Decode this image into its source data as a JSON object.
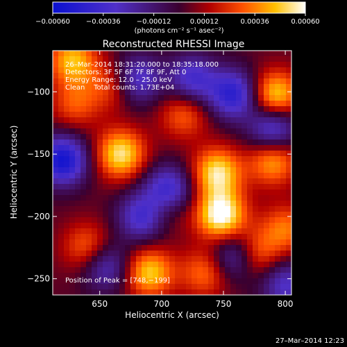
{
  "chart_data": {
    "type": "heatmap",
    "title": "Reconstructed RHESSI Image",
    "xlabel": "Heliocentric X (arcsec)",
    "ylabel": "Heliocentric Y (arcsec)",
    "xlim": [
      612,
      805
    ],
    "ylim": [
      -263,
      -67
    ],
    "x_ticks": [
      650,
      700,
      750,
      800
    ],
    "y_ticks": [
      -100,
      -150,
      -200,
      -250
    ],
    "x_tick_labels": [
      "650",
      "700",
      "750",
      "800"
    ],
    "y_tick_labels": [
      "−100",
      "−150",
      "−200",
      "−250"
    ],
    "colorbar": {
      "range": [
        -0.0006,
        0.0006
      ],
      "ticks": [
        -0.0006,
        -0.00036,
        -0.00012,
        0.00012,
        0.00036,
        0.0006
      ],
      "tick_labels": [
        "−0.00060",
        "−0.00036",
        "−0.00012",
        "0.00012",
        "0.00036",
        "0.00060"
      ],
      "unit_label": "(photons cm⁻² s⁻¹ asec⁻²)"
    },
    "annotations": [
      "26–Mar–2014 18:31:20.000 to 18:35:18.000",
      "Detectors: 3F 5F 6F 7F 8F 9F, Att 0",
      "Energy Range: 12.0 – 25.0 keV",
      "Clean    Total counts: 1.73E+04"
    ],
    "peak_label": "Position of Peak = [748,−199]",
    "peak": [
      748,
      -199
    ],
    "blobs": [
      {
        "x": 667,
        "y": -150,
        "v": 0.0005
      },
      {
        "x": 748,
        "y": -199,
        "v": 0.0006
      },
      {
        "x": 745,
        "y": -165,
        "v": 0.0005
      },
      {
        "x": 792,
        "y": -103,
        "v": 0.00048
      },
      {
        "x": 628,
        "y": -75,
        "v": 0.00042
      },
      {
        "x": 718,
        "y": -118,
        "v": 0.00028
      },
      {
        "x": 690,
        "y": -245,
        "v": 0.00045
      },
      {
        "x": 790,
        "y": -155,
        "v": 0.0004
      },
      {
        "x": 702,
        "y": -192,
        "v": 0.0003
      },
      {
        "x": 775,
        "y": -230,
        "v": 0.00035
      },
      {
        "x": 640,
        "y": -225,
        "v": 0.0003
      },
      {
        "x": 735,
        "y": -245,
        "v": 0.0003
      },
      {
        "x": 800,
        "y": -210,
        "v": 0.0003
      },
      {
        "x": 630,
        "y": -110,
        "v": 0.00025
      },
      {
        "x": 660,
        "y": -95,
        "v": 0.00025
      }
    ],
    "troughs": [
      {
        "x": 620,
        "y": -155,
        "v": -0.0006
      },
      {
        "x": 705,
        "y": -180,
        "v": -0.00055
      },
      {
        "x": 758,
        "y": -102,
        "v": -0.0005
      },
      {
        "x": 790,
        "y": -130,
        "v": -0.00045
      },
      {
        "x": 680,
        "y": -90,
        "v": -0.0004
      },
      {
        "x": 725,
        "y": -90,
        "v": -0.0004
      },
      {
        "x": 685,
        "y": -200,
        "v": -0.00045
      },
      {
        "x": 655,
        "y": -240,
        "v": -0.00035
      },
      {
        "x": 760,
        "y": -232,
        "v": -0.0004
      },
      {
        "x": 800,
        "y": -255,
        "v": -0.00035
      }
    ]
  },
  "footer_timestamp": "27–Mar–2014 12:23"
}
